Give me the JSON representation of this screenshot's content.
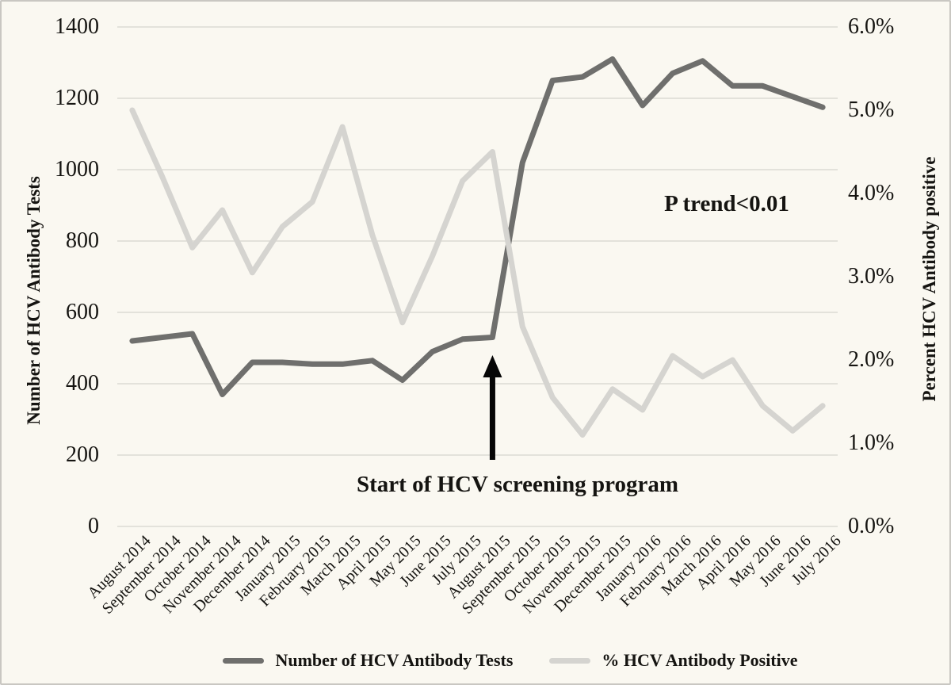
{
  "figure": {
    "background": "#faf8f1",
    "border_color": "#c9c7c2",
    "gridline_color": "#dbdad4",
    "text_color": "#151411"
  },
  "chart_data": {
    "type": "line",
    "grid": true,
    "legend_position": "bottom",
    "categories": [
      "August 2014",
      "September 2014",
      "October 2014",
      "November 2014",
      "December 2014",
      "January 2015",
      "February 2015",
      "March 2015",
      "April 2015",
      "May 2015",
      "June 2015",
      "July 2015",
      "August 2015",
      "September 2015",
      "October 2015",
      "November 2015",
      "December 2015",
      "January 2016",
      "February 2016",
      "March 2016",
      "April 2016",
      "May 2016",
      "June 2016",
      "July 2016"
    ],
    "series": [
      {
        "name": "Number of HCV Antibody Tests",
        "axis": "left",
        "color": "#6f6f6d",
        "values": [
          520,
          530,
          540,
          370,
          460,
          460,
          455,
          455,
          465,
          410,
          490,
          525,
          530,
          1020,
          1250,
          1260,
          1310,
          1180,
          1270,
          1305,
          1235,
          1235,
          1205,
          1175
        ]
      },
      {
        "name": "% HCV Antibody Positive",
        "axis": "right",
        "color": "#d5d4d0",
        "values": [
          5.0,
          4.2,
          3.35,
          3.8,
          3.05,
          3.6,
          3.9,
          4.8,
          3.5,
          2.45,
          3.25,
          4.15,
          4.5,
          2.4,
          1.55,
          1.1,
          1.65,
          1.4,
          2.05,
          1.8,
          2.0,
          1.45,
          1.15,
          1.45
        ]
      }
    ],
    "left_axis": {
      "title": "Number of HCV Antibody Tests",
      "min": 0,
      "max": 1400,
      "tick_step": 200,
      "tick_labels": [
        "0",
        "200",
        "400",
        "600",
        "800",
        "1000",
        "1200",
        "1400"
      ]
    },
    "right_axis": {
      "title": "Percent HCV Antibody positive",
      "min": 0,
      "max": 6,
      "tick_step": 1,
      "tick_labels": [
        "0.0%",
        "1.0%",
        "2.0%",
        "3.0%",
        "4.0%",
        "5.0%",
        "6.0%"
      ]
    },
    "annotations": {
      "arrow_label": "Start of HCV screening program",
      "arrow_category": "August 2015",
      "arrow_color": "#060606",
      "p_trend": "P trend<0.01"
    }
  }
}
